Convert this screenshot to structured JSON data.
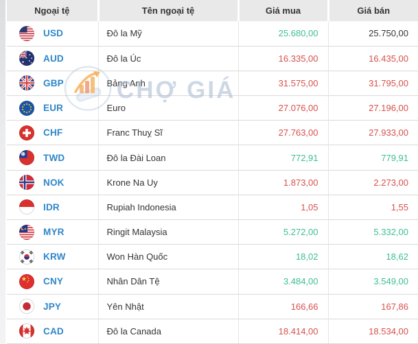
{
  "colors": {
    "up": "#3cbd96",
    "down": "#d6504b",
    "neutral": "#333333",
    "code_blue": "#2e86c8",
    "header_bg": "#e9e9e9"
  },
  "watermark": {
    "text": "CHỢ GIÁ",
    "logo_icon": "cho-gia-logo-icon"
  },
  "table": {
    "columns": [
      {
        "key": "currency",
        "label": "Ngoại tệ"
      },
      {
        "key": "name",
        "label": "Tên ngoại tệ"
      },
      {
        "key": "buy",
        "label": "Giá mua"
      },
      {
        "key": "sell",
        "label": "Giá bán"
      }
    ],
    "rows": [
      {
        "code": "USD",
        "flag_icon": "us-flag-icon",
        "name": "Đô la Mỹ",
        "buy": "25.680,00",
        "buy_trend": "up",
        "sell": "25.750,00",
        "sell_trend": "neutral"
      },
      {
        "code": "AUD",
        "flag_icon": "australia-flag-icon",
        "name": "Đô la Úc",
        "buy": "16.335,00",
        "buy_trend": "down",
        "sell": "16.435,00",
        "sell_trend": "down"
      },
      {
        "code": "GBP",
        "flag_icon": "uk-flag-icon",
        "name": "Bảng Anh",
        "buy": "31.575,00",
        "buy_trend": "down",
        "sell": "31.795,00",
        "sell_trend": "down"
      },
      {
        "code": "EUR",
        "flag_icon": "eu-flag-icon",
        "name": "Euro",
        "buy": "27.076,00",
        "buy_trend": "down",
        "sell": "27.196,00",
        "sell_trend": "down"
      },
      {
        "code": "CHF",
        "flag_icon": "switzerland-flag-icon",
        "name": "Franc Thuỵ Sĩ",
        "buy": "27.763,00",
        "buy_trend": "down",
        "sell": "27.933,00",
        "sell_trend": "down"
      },
      {
        "code": "TWD",
        "flag_icon": "taiwan-flag-icon",
        "name": "Đô la Đài Loan",
        "buy": "772,91",
        "buy_trend": "up",
        "sell": "779,91",
        "sell_trend": "up"
      },
      {
        "code": "NOK",
        "flag_icon": "norway-flag-icon",
        "name": "Krone Na Uy",
        "buy": "1.873,00",
        "buy_trend": "down",
        "sell": "2.273,00",
        "sell_trend": "down"
      },
      {
        "code": "IDR",
        "flag_icon": "indonesia-flag-icon",
        "name": "Rupiah Indonesia",
        "buy": "1,05",
        "buy_trend": "down",
        "sell": "1,55",
        "sell_trend": "down"
      },
      {
        "code": "MYR",
        "flag_icon": "malaysia-flag-icon",
        "name": "Ringit Malaysia",
        "buy": "5.272,00",
        "buy_trend": "up",
        "sell": "5.332,00",
        "sell_trend": "up"
      },
      {
        "code": "KRW",
        "flag_icon": "south-korea-flag-icon",
        "name": "Won Hàn Quốc",
        "buy": "18,02",
        "buy_trend": "up",
        "sell": "18,62",
        "sell_trend": "up"
      },
      {
        "code": "CNY",
        "flag_icon": "china-flag-icon",
        "name": "Nhân Dân Tệ",
        "buy": "3.484,00",
        "buy_trend": "up",
        "sell": "3.549,00",
        "sell_trend": "up"
      },
      {
        "code": "JPY",
        "flag_icon": "japan-flag-icon",
        "name": "Yên Nhật",
        "buy": "166,66",
        "buy_trend": "down",
        "sell": "167,86",
        "sell_trend": "down"
      },
      {
        "code": "CAD",
        "flag_icon": "canada-flag-icon",
        "name": "Đô la Canada",
        "buy": "18.414,00",
        "buy_trend": "down",
        "sell": "18.534,00",
        "sell_trend": "down"
      }
    ]
  }
}
